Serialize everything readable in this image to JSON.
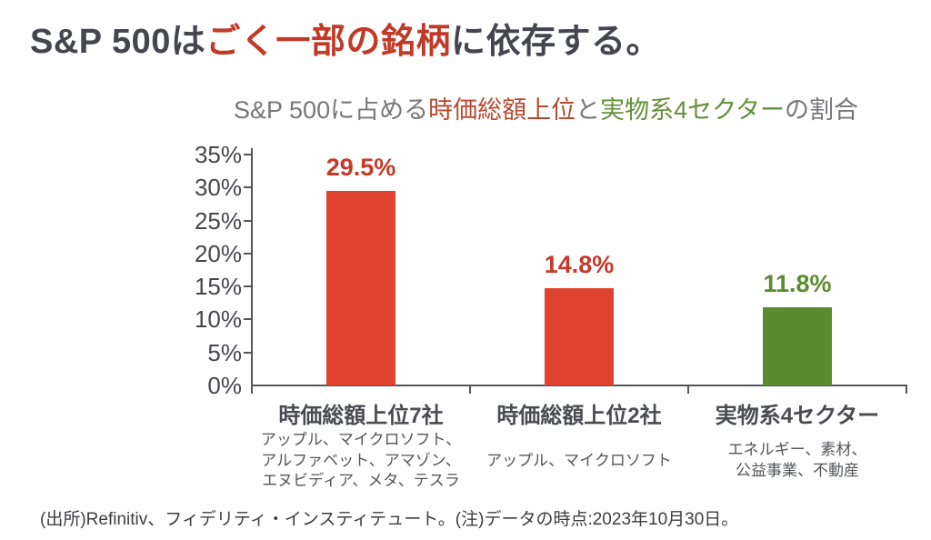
{
  "title": {
    "part1": "S&P 500は",
    "highlight": "ごく一部の銘柄",
    "part2": "に依存する。"
  },
  "subtitle": {
    "part1": "S&P 500に占める",
    "highlight_red": "時価総額上位",
    "part2": "と",
    "highlight_green": "実物系4セクター",
    "part3": "の割合"
  },
  "chart_data": {
    "type": "bar",
    "title": "S&P 500に占める時価総額上位と実物系4セクターの割合",
    "categories": [
      "時価総額上位7社",
      "時価総額上位2社",
      "実物系4セクター"
    ],
    "values": [
      29.5,
      14.8,
      11.8
    ],
    "value_labels": [
      "29.5%",
      "14.8%",
      "11.8%"
    ],
    "bar_colors": [
      "#DF422F",
      "#DF422F",
      "#5B8B2F"
    ],
    "label_colors": [
      "#C43A28",
      "#C43A28",
      "#5C8B31"
    ],
    "sublabels": [
      [
        "アップル、マイクロソフト、",
        "アルファベット、アマゾン、",
        "エヌビディア、メタ、テスラ"
      ],
      [
        "アップル、マイクロソフト"
      ],
      [
        "エネルギー、素材、",
        "公益事業、不動産"
      ]
    ],
    "yticks": [
      "0%",
      "5%",
      "10%",
      "15%",
      "20%",
      "25%",
      "30%",
      "35%"
    ],
    "xlabel": "",
    "ylabel": "",
    "ylim": [
      0,
      35
    ],
    "grid": false,
    "legend": false
  },
  "footer": {
    "source": "(出所)Refinitiv、フィデリティ・インスティテュート。(注)データの時点:2023年10月30日。"
  },
  "colors": {
    "title_dark": "#45464D",
    "title_red": "#C13A28",
    "subtitle_gray": "#77777A",
    "subtitle_red": "#B6492F",
    "subtitle_green": "#64903A",
    "axis": "#55565A",
    "bar_red": "#DF422F",
    "bar_green": "#5B8B2F"
  }
}
